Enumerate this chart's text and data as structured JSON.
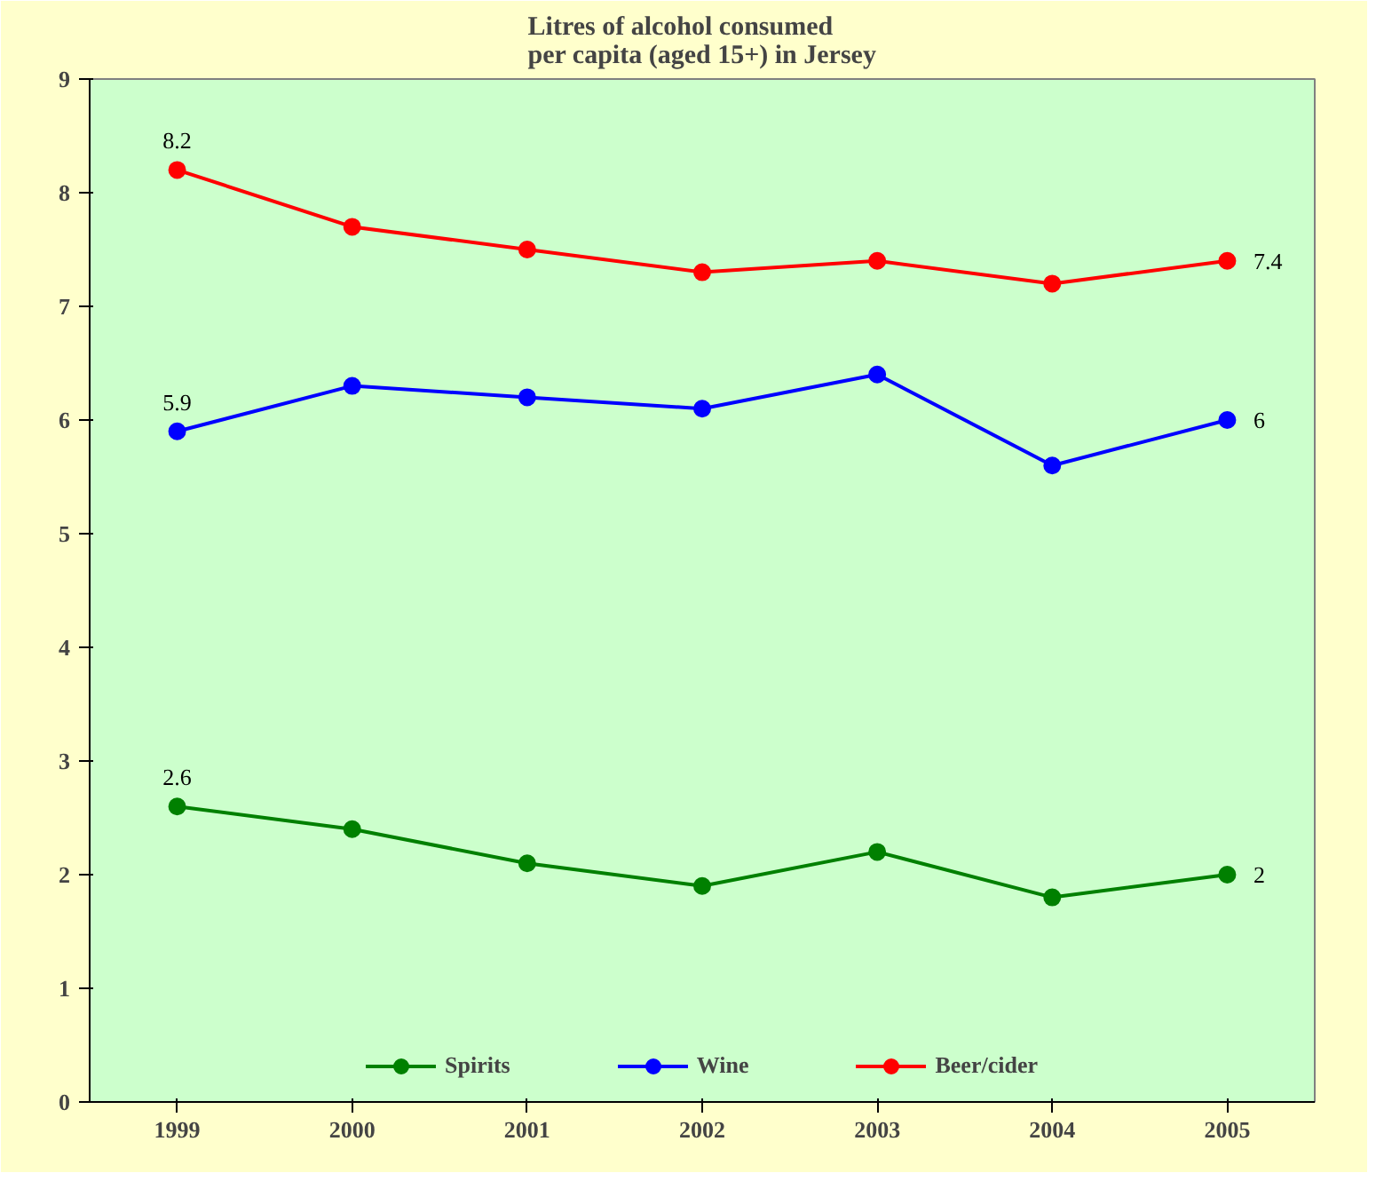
{
  "chart_data": {
    "type": "line",
    "title": "Litres of alcohol consumed\nper capita (aged 15+) in Jersey",
    "categories": [
      "1999",
      "2000",
      "2001",
      "2002",
      "2003",
      "2004",
      "2005"
    ],
    "series": [
      {
        "name": "Spirits",
        "color": "#008000",
        "values": [
          2.6,
          2.4,
          2.1,
          1.9,
          2.2,
          1.8,
          2.0
        ],
        "value_labels": [
          "2.6",
          null,
          null,
          null,
          null,
          null,
          "2"
        ]
      },
      {
        "name": "Wine",
        "color": "#0000ff",
        "values": [
          5.9,
          6.3,
          6.2,
          6.1,
          6.4,
          5.6,
          6.0
        ],
        "value_labels": [
          "5.9",
          null,
          null,
          null,
          null,
          null,
          "6"
        ]
      },
      {
        "name": "Beer/cider",
        "color": "#ff0000",
        "values": [
          8.2,
          7.7,
          7.5,
          7.3,
          7.4,
          7.2,
          7.4
        ],
        "value_labels": [
          "8.2",
          null,
          null,
          null,
          null,
          null,
          "7.4"
        ]
      }
    ],
    "ylim": [
      0,
      9
    ],
    "yticks": [
      0,
      1,
      2,
      3,
      4,
      5,
      6,
      7,
      8,
      9
    ],
    "grid": false,
    "legend": "bottom",
    "marker": "circle",
    "line_style": "solid"
  }
}
